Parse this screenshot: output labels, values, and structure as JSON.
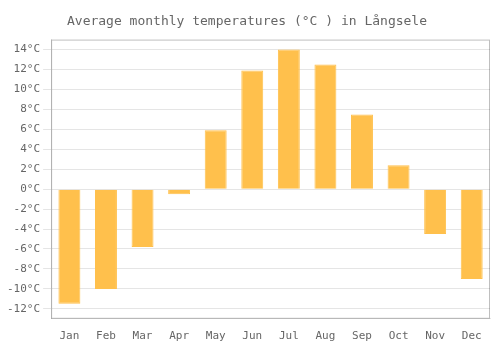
{
  "chart_data": {
    "type": "bar",
    "title": "Average monthly temperatures (°C ) in Långsele",
    "categories": [
      "Jan",
      "Feb",
      "Mar",
      "Apr",
      "May",
      "Jun",
      "Jul",
      "Aug",
      "Sep",
      "Oct",
      "Nov",
      "Dec"
    ],
    "values": [
      -11.5,
      -10.0,
      -5.8,
      -0.5,
      5.9,
      11.9,
      14.0,
      12.5,
      7.5,
      2.4,
      -4.5,
      -9.0
    ],
    "color": "#FFC04C",
    "ylim": [
      -13,
      15
    ],
    "yticks": [
      {
        "value": -12,
        "label": "-12°C"
      },
      {
        "value": -10,
        "label": "-10°C"
      },
      {
        "value": -8,
        "label": "-8°C"
      },
      {
        "value": -6,
        "label": "-6°C"
      },
      {
        "value": -4,
        "label": "-4°C"
      },
      {
        "value": -2,
        "label": "-2°C"
      },
      {
        "value": 0,
        "label": "0°C"
      },
      {
        "value": 2,
        "label": "2°C"
      },
      {
        "value": 4,
        "label": "4°C"
      },
      {
        "value": 6,
        "label": "6°C"
      },
      {
        "value": 8,
        "label": "8°C"
      },
      {
        "value": 10,
        "label": "10°C"
      },
      {
        "value": 12,
        "label": "12°C"
      },
      {
        "value": 14,
        "label": "14°C"
      }
    ],
    "grid": true
  }
}
